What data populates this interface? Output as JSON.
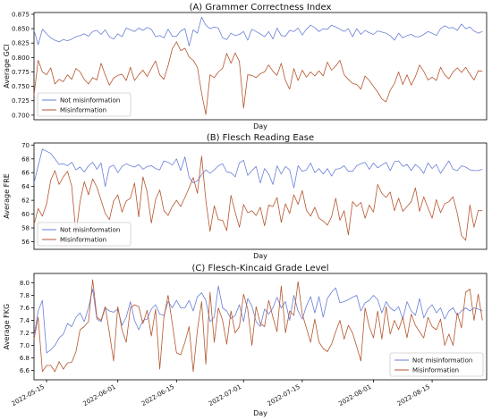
{
  "colors": {
    "not": "#6a7fd6",
    "mis": "#b5562e",
    "axis": "#000000"
  },
  "chart_data": [
    {
      "type": "line",
      "title": "(A) Grammer Correctness Index",
      "xlabel": "Day",
      "ylabel": "Average GCI",
      "x_start": "2022-05-12",
      "x_end": "2022-08-28",
      "ylim": [
        0.692,
        0.878
      ],
      "yticks": [
        0.7,
        0.725,
        0.75,
        0.775,
        0.8,
        0.825,
        0.85,
        0.875
      ],
      "ytick_labels": [
        "0.700",
        "0.725",
        "0.750",
        "0.775",
        "0.800",
        "0.825",
        "0.850",
        "0.875"
      ],
      "legend": {
        "position": "lower-left",
        "entries": [
          "Not misinformation",
          "Misinformation"
        ]
      },
      "series": [
        {
          "name": "Not misinformation",
          "values": [
            0.847,
            0.822,
            0.849,
            0.841,
            0.834,
            0.83,
            0.827,
            0.831,
            0.829,
            0.832,
            0.836,
            0.838,
            0.841,
            0.837,
            0.845,
            0.847,
            0.84,
            0.848,
            0.836,
            0.832,
            0.841,
            0.836,
            0.851,
            0.848,
            0.845,
            0.851,
            0.847,
            0.852,
            0.849,
            0.836,
            0.838,
            0.834,
            0.849,
            0.837,
            0.837,
            0.846,
            0.85,
            0.82,
            0.848,
            0.842,
            0.87,
            0.856,
            0.85,
            0.853,
            0.851,
            0.834,
            0.831,
            0.842,
            0.838,
            0.84,
            0.845,
            0.83,
            0.849,
            0.845,
            0.841,
            0.836,
            0.845,
            0.832,
            0.851,
            0.838,
            0.837,
            0.847,
            0.845,
            0.851,
            0.839,
            0.849,
            0.856,
            0.852,
            0.845,
            0.85,
            0.849,
            0.856,
            0.853,
            0.849,
            0.845,
            0.85,
            0.836,
            0.85,
            0.84,
            0.847,
            0.843,
            0.84,
            0.846,
            0.844,
            0.842,
            0.838,
            0.83,
            0.842,
            0.834,
            0.838,
            0.84,
            0.836,
            0.836,
            0.84,
            0.845,
            0.842,
            0.838,
            0.85,
            0.855,
            0.851,
            0.852,
            0.847,
            0.858,
            0.85,
            0.853,
            0.846,
            0.842,
            0.845
          ]
        },
        {
          "name": "Misinformation",
          "values": [
            0.735,
            0.795,
            0.775,
            0.77,
            0.782,
            0.754,
            0.762,
            0.758,
            0.77,
            0.762,
            0.781,
            0.775,
            0.762,
            0.754,
            0.765,
            0.761,
            0.79,
            0.77,
            0.752,
            0.764,
            0.769,
            0.771,
            0.76,
            0.783,
            0.76,
            0.77,
            0.778,
            0.767,
            0.781,
            0.794,
            0.77,
            0.762,
            0.786,
            0.815,
            0.827,
            0.812,
            0.816,
            0.801,
            0.795,
            0.783,
            0.738,
            0.701,
            0.77,
            0.765,
            0.775,
            0.781,
            0.807,
            0.79,
            0.808,
            0.793,
            0.712,
            0.77,
            0.769,
            0.765,
            0.772,
            0.775,
            0.787,
            0.776,
            0.769,
            0.79,
            0.76,
            0.745,
            0.781,
            0.76,
            0.778,
            0.766,
            0.775,
            0.768,
            0.777,
            0.768,
            0.792,
            0.778,
            0.785,
            0.795,
            0.77,
            0.762,
            0.755,
            0.753,
            0.745,
            0.768,
            0.76,
            0.75,
            0.74,
            0.728,
            0.723,
            0.743,
            0.755,
            0.775,
            0.753,
            0.77,
            0.752,
            0.767,
            0.787,
            0.776,
            0.761,
            0.766,
            0.76,
            0.783,
            0.77,
            0.763,
            0.775,
            0.782,
            0.774,
            0.783,
            0.771,
            0.761,
            0.777,
            0.776
          ]
        }
      ]
    },
    {
      "type": "line",
      "title": "(B) Flesch Reading Ease",
      "xlabel": "Day",
      "ylabel": "Average FRE",
      "x_start": "2022-05-12",
      "x_end": "2022-08-28",
      "ylim": [
        54.9,
        70.3
      ],
      "yticks": [
        56,
        58,
        60,
        62,
        64,
        66,
        68,
        70
      ],
      "ytick_labels": [
        "56",
        "58",
        "60",
        "62",
        "64",
        "66",
        "68",
        "70"
      ],
      "legend": {
        "position": "lower-left",
        "entries": [
          "Not misinformation",
          "Misinformation"
        ]
      },
      "series": [
        {
          "name": "Not misinformation",
          "values": [
            64.5,
            67.0,
            69.4,
            69.1,
            68.8,
            68.0,
            67.2,
            67.3,
            67.0,
            67.5,
            66.4,
            66.8,
            66.1,
            67.0,
            67.5,
            66.5,
            67.4,
            64.0,
            66.8,
            67.1,
            66.0,
            66.9,
            67.3,
            67.0,
            66.8,
            67.2,
            66.5,
            66.9,
            67.0,
            66.6,
            66.4,
            67.7,
            67.5,
            67.1,
            68.0,
            66.3,
            68.3,
            65.3,
            64.5,
            64.8,
            65.7,
            66.4,
            65.9,
            66.4,
            67.0,
            67.3,
            66.1,
            66.0,
            65.4,
            67.4,
            67.8,
            65.6,
            66.3,
            66.9,
            64.5,
            66.6,
            65.8,
            64.3,
            67.0,
            65.8,
            66.9,
            66.4,
            63.8,
            67.0,
            66.2,
            66.4,
            67.4,
            66.0,
            66.6,
            65.8,
            66.6,
            65.5,
            66.5,
            66.6,
            67.0,
            66.2,
            66.2,
            67.0,
            67.3,
            67.5,
            66.5,
            67.4,
            66.7,
            67.1,
            67.5,
            66.3,
            67.6,
            67.7,
            66.9,
            67.2,
            66.3,
            67.2,
            66.7,
            65.9,
            67.4,
            66.6,
            67.2,
            65.9,
            66.8,
            67.7,
            66.5,
            66.3,
            67.0,
            66.8,
            66.4,
            66.3,
            66.3,
            66.5
          ]
        },
        {
          "name": "Misinformation",
          "values": [
            58.5,
            60.8,
            59.7,
            61.5,
            64.9,
            66.3,
            64.3,
            65.4,
            66.2,
            64.0,
            57.2,
            61.8,
            64.7,
            62.8,
            65.1,
            63.9,
            62.0,
            60.1,
            59.2,
            61.9,
            62.8,
            60.3,
            61.9,
            62.3,
            64.5,
            59.6,
            65.4,
            63.2,
            58.7,
            62.1,
            63.5,
            60.5,
            59.8,
            61.1,
            62.0,
            61.1,
            62.4,
            63.8,
            65.3,
            63.0,
            68.4,
            62.0,
            57.5,
            61.2,
            59.2,
            59.1,
            57.6,
            62.7,
            60.3,
            58.1,
            61.4,
            60.2,
            60.5,
            59.8,
            61.0,
            58.3,
            61.3,
            61.1,
            62.4,
            58.8,
            61.5,
            60.1,
            62.8,
            61.4,
            63.4,
            60.6,
            59.7,
            61.0,
            59.4,
            59.0,
            58.4,
            59.6,
            62.3,
            59.1,
            60.5,
            57.0,
            61.8,
            61.1,
            61.7,
            59.4,
            61.3,
            60.3,
            64.3,
            63.0,
            62.4,
            63.2,
            60.5,
            62.3,
            60.4,
            61.1,
            61.8,
            63.8,
            60.4,
            62.5,
            60.9,
            59.4,
            62.1,
            60.2,
            61.5,
            61.8,
            62.5,
            60.1,
            56.9,
            56.2,
            61.3,
            58.1,
            60.5,
            60.5
          ]
        }
      ]
    },
    {
      "type": "line",
      "title": "(C) Flesch-Kincaid Grade Level",
      "xlabel": "Day",
      "ylabel": "Average FKG",
      "x_start": "2022-05-12",
      "x_end": "2022-08-28",
      "ylim": [
        6.45,
        8.15
      ],
      "yticks": [
        6.6,
        6.8,
        7.0,
        7.2,
        7.4,
        7.6,
        7.8,
        8.0
      ],
      "ytick_labels": [
        "6.6",
        "6.8",
        "7.0",
        "7.2",
        "7.4",
        "7.6",
        "7.8",
        "8.0"
      ],
      "xticks": [
        "2022-05-15",
        "2022-06-01",
        "2022-06-15",
        "2022-07-01",
        "2022-07-15",
        "2022-08-01",
        "2022-08-15"
      ],
      "legend": {
        "position": "lower-right",
        "entries": [
          "Not misinformation",
          "Misinformation"
        ]
      },
      "series": [
        {
          "name": "Not misinformation",
          "values": [
            7.15,
            7.55,
            7.72,
            6.88,
            6.93,
            7.0,
            7.12,
            7.18,
            7.35,
            7.3,
            7.45,
            7.52,
            7.38,
            7.6,
            7.9,
            7.42,
            7.38,
            7.6,
            7.55,
            7.53,
            7.58,
            7.32,
            7.45,
            7.7,
            7.4,
            7.25,
            7.4,
            7.42,
            7.58,
            7.65,
            7.5,
            7.48,
            7.7,
            7.6,
            7.72,
            7.6,
            7.6,
            7.72,
            7.55,
            7.78,
            7.84,
            7.72,
            7.38,
            7.45,
            7.95,
            7.6,
            7.55,
            7.43,
            7.48,
            7.65,
            7.38,
            7.75,
            7.63,
            7.38,
            7.3,
            7.58,
            7.5,
            7.6,
            7.77,
            7.6,
            7.7,
            7.4,
            7.8,
            7.55,
            7.42,
            7.63,
            7.78,
            7.52,
            7.78,
            7.45,
            7.75,
            7.85,
            7.92,
            7.68,
            7.7,
            7.73,
            7.77,
            7.8,
            7.55,
            7.68,
            7.72,
            7.8,
            7.73,
            7.52,
            7.7,
            7.6,
            7.55,
            7.62,
            7.42,
            7.7,
            7.55,
            7.48,
            7.75,
            7.44,
            7.58,
            7.65,
            7.52,
            7.6,
            7.42,
            7.55,
            7.6,
            7.48,
            7.55,
            7.6,
            7.55,
            7.6,
            7.58,
            7.55
          ]
        },
        {
          "name": "Misinformation",
          "values": [
            7.1,
            7.45,
            6.58,
            6.68,
            6.68,
            6.58,
            6.74,
            6.62,
            6.72,
            6.73,
            6.9,
            7.25,
            7.3,
            7.38,
            8.05,
            7.45,
            7.4,
            7.62,
            7.2,
            6.75,
            7.62,
            7.25,
            7.05,
            7.6,
            7.65,
            7.62,
            7.35,
            7.56,
            7.15,
            7.58,
            6.62,
            7.45,
            7.8,
            7.35,
            6.88,
            6.85,
            7.05,
            7.3,
            6.58,
            7.25,
            7.7,
            6.7,
            7.85,
            7.05,
            7.6,
            7.4,
            7.02,
            7.55,
            7.2,
            7.3,
            7.82,
            7.58,
            7.0,
            7.62,
            7.35,
            7.3,
            7.72,
            7.45,
            7.22,
            7.95,
            7.2,
            7.55,
            7.48,
            8.02,
            7.5,
            7.28,
            7.05,
            7.42,
            7.05,
            6.95,
            6.9,
            7.02,
            7.22,
            7.4,
            7.1,
            7.32,
            7.2,
            6.98,
            6.75,
            7.6,
            7.3,
            7.12,
            7.55,
            7.1,
            7.62,
            7.18,
            7.4,
            7.25,
            7.45,
            7.12,
            7.5,
            7.32,
            7.22,
            7.12,
            7.45,
            7.3,
            7.25,
            7.42,
            7.0,
            7.18,
            7.0,
            7.52,
            7.28,
            7.85,
            7.9,
            7.4,
            7.82,
            7.4
          ]
        }
      ]
    }
  ]
}
